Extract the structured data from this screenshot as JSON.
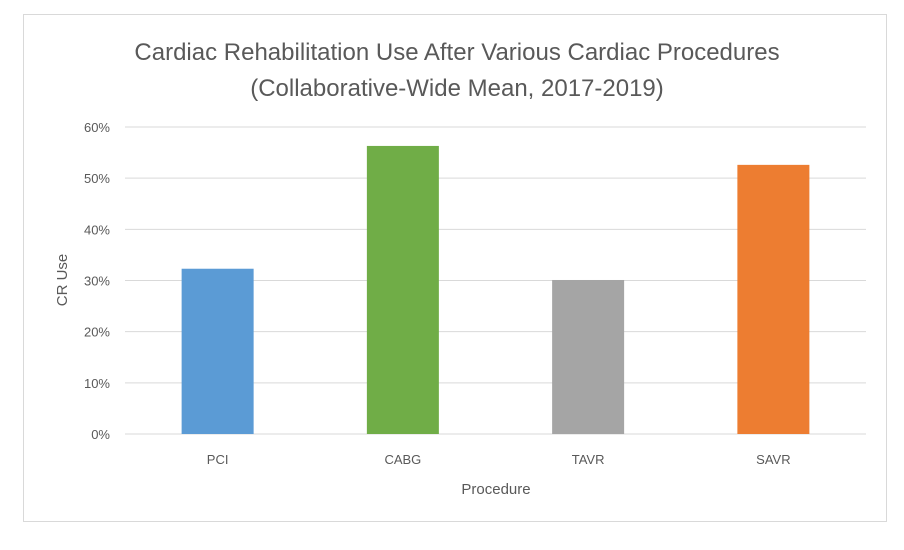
{
  "chart_data": {
    "type": "bar",
    "title": "Cardiac Rehabilitation Use After Various Cardiac Procedures",
    "subtitle": "(Collaborative-Wide Mean, 2017-2019)",
    "xlabel": "Procedure",
    "ylabel": "CR Use",
    "categories": [
      "PCI",
      "CABG",
      "TAVR",
      "SAVR"
    ],
    "values": [
      32.3,
      56.3,
      30.1,
      52.6
    ],
    "colors": [
      "#5b9bd5",
      "#70ad47",
      "#a5a5a5",
      "#ed7d31"
    ],
    "ylim": [
      0,
      60
    ],
    "yticks": [
      0,
      10,
      20,
      30,
      40,
      50,
      60
    ],
    "ytick_labels": [
      "0%",
      "10%",
      "20%",
      "30%",
      "40%",
      "50%",
      "60%"
    ],
    "grid": true,
    "grid_color": "#d9d9d9",
    "legend": "none"
  }
}
